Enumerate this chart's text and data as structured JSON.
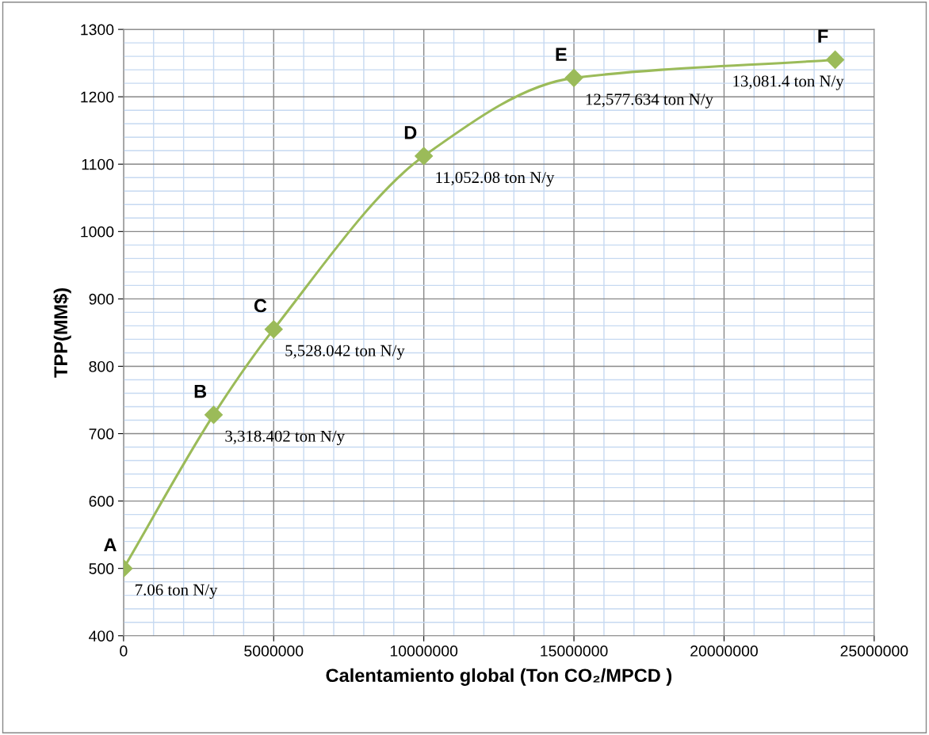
{
  "chart_data": {
    "type": "line",
    "xlabel": "Calentamiento global (Ton CO₂/MPCD )",
    "ylabel": "TPP(MM$)",
    "x": [
      0,
      3000000,
      5000000,
      10000000,
      15000000,
      23700000
    ],
    "series": [
      {
        "color": "#9bbb59",
        "values": [
          500,
          728,
          855,
          1112,
          1228,
          1255
        ]
      }
    ],
    "marker": "diamond",
    "line_style": "solid",
    "grid": true,
    "xlim": [
      0,
      25000000
    ],
    "xticks": [
      0,
      {
        "value": 1000000,
        "label": null
      },
      {
        "value": 2000000,
        "label": null
      },
      {
        "value": 3000000,
        "label": null
      },
      {
        "value": 4000000,
        "label": null
      },
      5000000,
      {
        "value": 6000000,
        "label": null
      },
      {
        "value": 7000000,
        "label": null
      },
      {
        "value": 8000000,
        "label": null
      },
      {
        "value": 9000000,
        "label": null
      },
      10000000,
      {
        "value": 11000000,
        "label": null
      },
      {
        "value": 12000000,
        "label": null
      },
      {
        "value": 13000000,
        "label": null
      },
      {
        "value": 14000000,
        "label": null
      },
      15000000,
      {
        "value": 16000000,
        "label": null
      },
      {
        "value": 17000000,
        "label": null
      },
      {
        "value": 18000000,
        "label": null
      },
      {
        "value": 19000000,
        "label": null
      },
      20000000,
      {
        "value": 21000000,
        "label": null
      },
      {
        "value": 22000000,
        "label": null
      },
      {
        "value": 23000000,
        "label": null
      },
      {
        "value": 24000000,
        "label": null
      },
      25000000
    ],
    "ylim": [
      400,
      1300
    ],
    "yticks": [
      400,
      {
        "value": 420,
        "label": null
      },
      {
        "value": 440,
        "label": null
      },
      {
        "value": 460,
        "label": null
      },
      {
        "value": 480,
        "label": null
      },
      500,
      {
        "value": 520,
        "label": null
      },
      {
        "value": 540,
        "label": null
      },
      {
        "value": 560,
        "label": null
      },
      {
        "value": 580,
        "label": null
      },
      600,
      {
        "value": 620,
        "label": null
      },
      {
        "value": 640,
        "label": null
      },
      {
        "value": 660,
        "label": null
      },
      {
        "value": 680,
        "label": null
      },
      700,
      {
        "value": 720,
        "label": null
      },
      {
        "value": 740,
        "label": null
      },
      {
        "value": 760,
        "label": null
      },
      {
        "value": 780,
        "label": null
      },
      800,
      {
        "value": 820,
        "label": null
      },
      {
        "value": 840,
        "label": null
      },
      {
        "value": 860,
        "label": null
      },
      {
        "value": 880,
        "label": null
      },
      900,
      {
        "value": 920,
        "label": null
      },
      {
        "value": 940,
        "label": null
      },
      {
        "value": 960,
        "label": null
      },
      {
        "value": 980,
        "label": null
      },
      1000,
      {
        "value": 1020,
        "label": null
      },
      {
        "value": 1040,
        "label": null
      },
      {
        "value": 1060,
        "label": null
      },
      {
        "value": 1080,
        "label": null
      },
      1100,
      {
        "value": 1120,
        "label": null
      },
      {
        "value": 1140,
        "label": null
      },
      {
        "value": 1160,
        "label": null
      },
      {
        "value": 1180,
        "label": null
      },
      1200,
      {
        "value": 1220,
        "label": null
      },
      {
        "value": 1240,
        "label": null
      },
      {
        "value": 1260,
        "label": null
      },
      {
        "value": 1280,
        "label": null
      },
      1300
    ],
    "annotations": [
      {
        "text": "A",
        "x": 0,
        "y": 500
      },
      {
        "text": "7.06 ton N/y",
        "x": 0,
        "y": 500
      },
      {
        "text": "B",
        "x": 3000000,
        "y": 728
      },
      {
        "text": "3,318.402 ton N/y",
        "x": 3000000,
        "y": 728
      },
      {
        "text": "C",
        "x": 5000000,
        "y": 855
      },
      {
        "text": "5,528.042 ton N/y",
        "x": 5000000,
        "y": 855
      },
      {
        "text": "D",
        "x": 10000000,
        "y": 1112
      },
      {
        "text": "11,052.08 ton N/y",
        "x": 10000000,
        "y": 1112
      },
      {
        "text": "E",
        "x": 15000000,
        "y": 1228
      },
      {
        "text": "12,577.634 ton N/y",
        "x": 15000000,
        "y": 1228
      },
      {
        "text": "F",
        "x": 23700000,
        "y": 1255
      },
      {
        "text": "13,081.4 ton N/y",
        "x": 23700000,
        "y": 1255
      }
    ]
  }
}
